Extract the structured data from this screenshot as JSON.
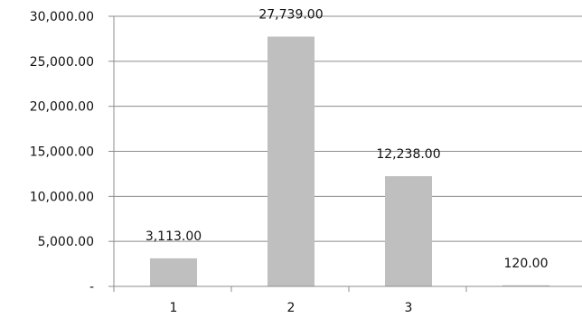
{
  "chart_data": {
    "type": "bar",
    "categories": [
      "1",
      "2",
      "3",
      ""
    ],
    "values": [
      3113,
      27739,
      12238,
      120
    ],
    "data_labels": [
      "3,113.00",
      "27,739.00",
      "12,238.00",
      "120.00"
    ],
    "ylim": [
      0,
      30000
    ],
    "yticks": [
      0,
      5000,
      10000,
      15000,
      20000,
      25000,
      30000
    ],
    "ytick_labels": [
      "-",
      "5,000.00",
      "10,000.00",
      "15,000.00",
      "20,000.00",
      "25,000.00",
      "30,000.00"
    ],
    "grid": true,
    "legend": "none",
    "bar_color": "#bfbfbf",
    "grid_color": "#8c8c8c"
  }
}
